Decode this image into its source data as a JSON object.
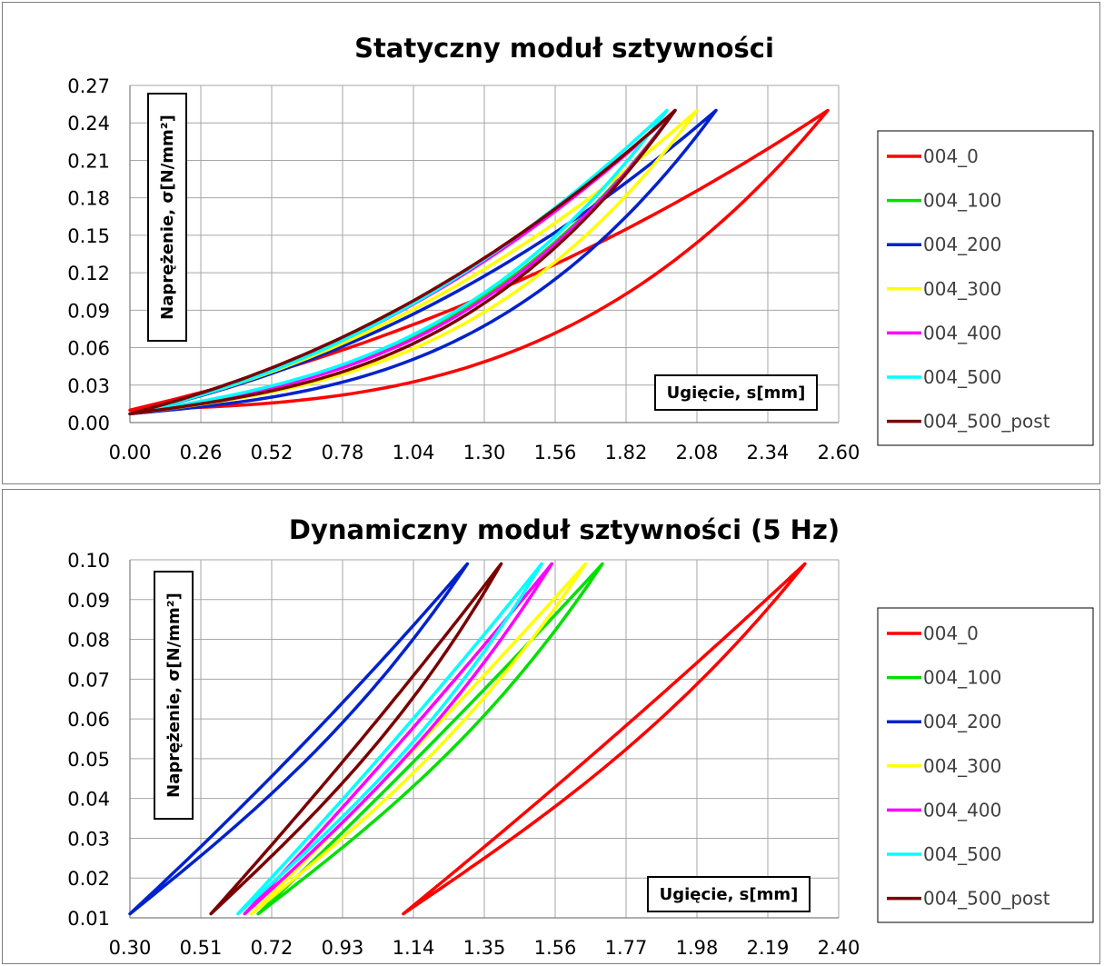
{
  "chart_data": [
    {
      "type": "line",
      "title": "Statyczny moduł sztywności",
      "xlabel": "Ugięcie, s[mm]",
      "ylabel": "Naprężenie, σ[N/mm²]",
      "xlim": [
        0,
        2.6
      ],
      "ylim": [
        0,
        0.27
      ],
      "x_ticks": [
        "0.00",
        "0.26",
        "0.52",
        "0.78",
        "1.04",
        "1.30",
        "1.56",
        "1.82",
        "2.08",
        "2.34",
        "2.60"
      ],
      "y_ticks": [
        "0.00",
        "0.03",
        "0.06",
        "0.09",
        "0.12",
        "0.15",
        "0.18",
        "0.21",
        "0.24",
        "0.27"
      ],
      "grid": true,
      "legend_position": "right",
      "series": [
        {
          "name": "004_0",
          "color": "#ff0000",
          "min": [
            0,
            0.01
          ],
          "max": [
            2.56,
            0.25
          ],
          "sagUp": 0.45,
          "sagDown": 0.92
        },
        {
          "name": "004_100",
          "color": "#00e000",
          "min": [
            0,
            0.007
          ],
          "max": [
            2.0,
            0.25
          ],
          "sagUp": 0.55,
          "sagDown": 0.7
        },
        {
          "name": "004_200",
          "color": "#0022cc",
          "min": [
            0,
            0.007
          ],
          "max": [
            2.15,
            0.25
          ],
          "sagUp": 0.55,
          "sagDown": 0.82
        },
        {
          "name": "004_300",
          "color": "#ffff00",
          "min": [
            0,
            0.007
          ],
          "max": [
            2.08,
            0.25
          ],
          "sagUp": 0.55,
          "sagDown": 0.76
        },
        {
          "name": "004_400",
          "color": "#ff00ff",
          "min": [
            0,
            0.007
          ],
          "max": [
            2.0,
            0.25
          ],
          "sagUp": 0.56,
          "sagDown": 0.72
        },
        {
          "name": "004_500",
          "color": "#00ffff",
          "min": [
            0,
            0.007
          ],
          "max": [
            1.97,
            0.25
          ],
          "sagUp": 0.58,
          "sagDown": 0.7
        },
        {
          "name": "004_500_post",
          "color": "#7a0000",
          "min": [
            0,
            0.007
          ],
          "max": [
            2.0,
            0.25
          ],
          "sagUp": 0.52,
          "sagDown": 0.76
        }
      ]
    },
    {
      "type": "line",
      "title": "Dynamiczny moduł sztywności (5 Hz)",
      "xlabel": "Ugięcie, s[mm]",
      "ylabel": "Naprężenie, σ[N/mm²]",
      "xlim": [
        0.3,
        2.4
      ],
      "ylim": [
        0.01,
        0.1
      ],
      "x_ticks": [
        "0.30",
        "0.51",
        "0.72",
        "0.93",
        "1.14",
        "1.35",
        "1.56",
        "1.77",
        "1.98",
        "2.19",
        "2.40"
      ],
      "y_ticks": [
        "0.01",
        "0.02",
        "0.03",
        "0.04",
        "0.05",
        "0.06",
        "0.07",
        "0.08",
        "0.09",
        "0.10"
      ],
      "grid": true,
      "legend_position": "right",
      "series": [
        {
          "name": "004_0",
          "color": "#ff0000",
          "min": [
            1.11,
            0.011
          ],
          "max": [
            2.3,
            0.099
          ],
          "sagUp": 0.06,
          "sagDown": 0.22
        },
        {
          "name": "004_100",
          "color": "#00e000",
          "min": [
            0.68,
            0.011
          ],
          "max": [
            1.7,
            0.099
          ],
          "sagUp": 0.06,
          "sagDown": 0.24
        },
        {
          "name": "004_200",
          "color": "#0022cc",
          "min": [
            0.3,
            0.011
          ],
          "max": [
            1.3,
            0.099
          ],
          "sagUp": 0.1,
          "sagDown": 0.22
        },
        {
          "name": "004_300",
          "color": "#ffff00",
          "min": [
            0.66,
            0.011
          ],
          "max": [
            1.65,
            0.099
          ],
          "sagUp": 0.06,
          "sagDown": 0.22
        },
        {
          "name": "004_400",
          "color": "#ff00ff",
          "min": [
            0.64,
            0.011
          ],
          "max": [
            1.55,
            0.099
          ],
          "sagUp": 0.06,
          "sagDown": 0.2
        },
        {
          "name": "004_500",
          "color": "#00ffff",
          "min": [
            0.62,
            0.011
          ],
          "max": [
            1.52,
            0.099
          ],
          "sagUp": 0.07,
          "sagDown": 0.22
        },
        {
          "name": "004_500_post",
          "color": "#7a0000",
          "min": [
            0.54,
            0.011
          ],
          "max": [
            1.4,
            0.099
          ],
          "sagUp": 0.07,
          "sagDown": 0.22
        }
      ]
    }
  ]
}
